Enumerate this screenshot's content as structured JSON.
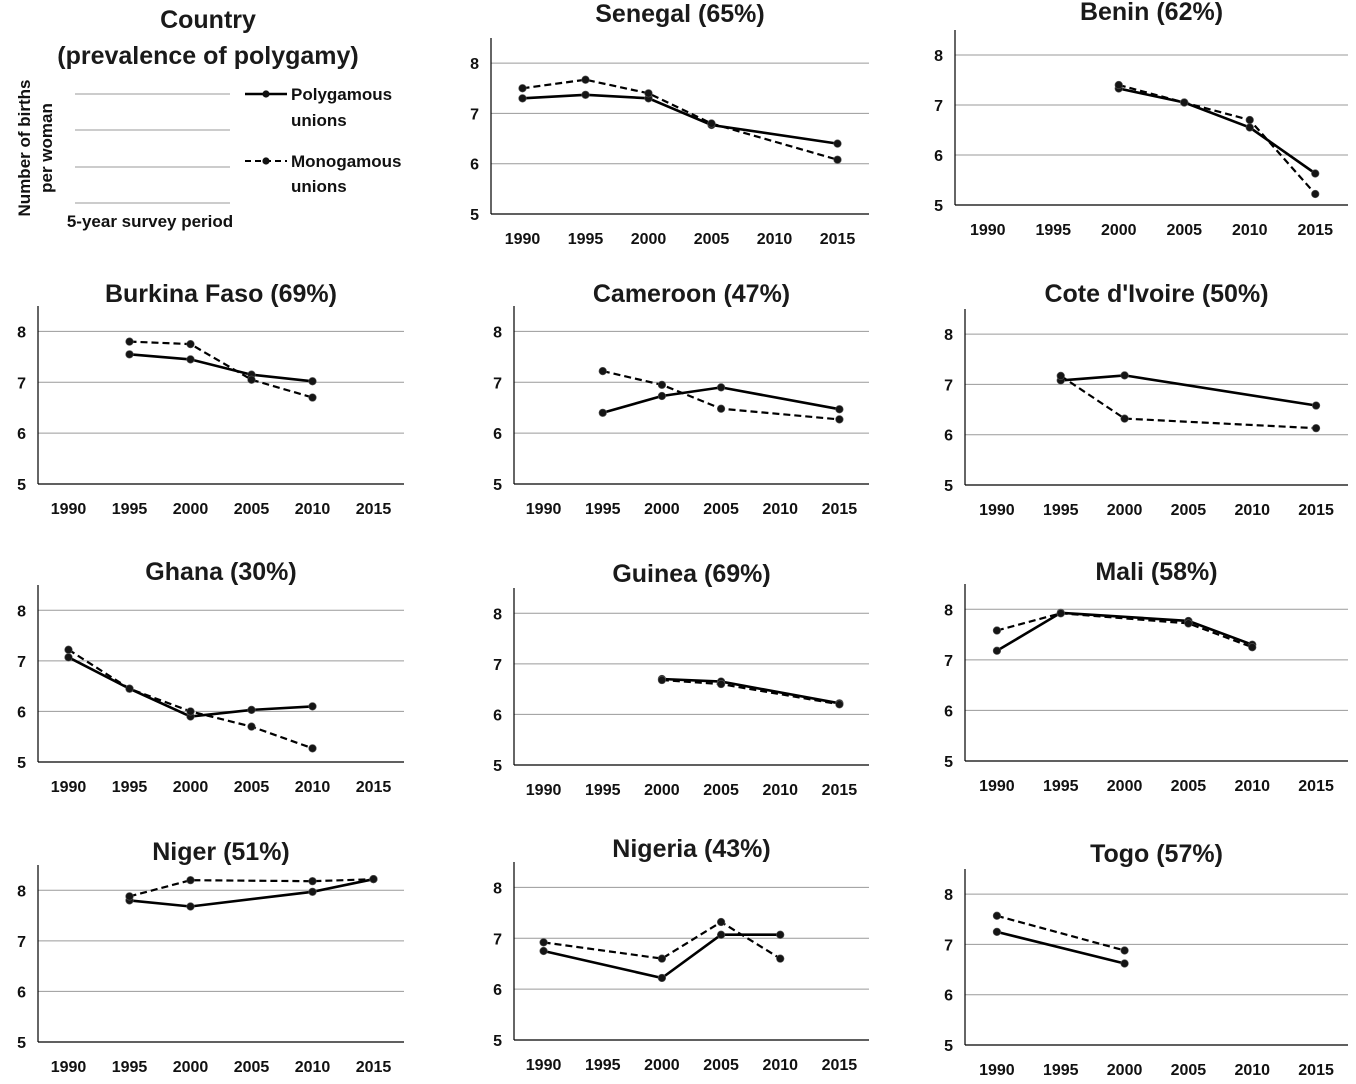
{
  "legend": {
    "title_line1": "Country",
    "title_line2": "(prevalence of polygamy)",
    "ylabel_line1": "Number of births",
    "ylabel_line2": "per woman",
    "xlabel": "5-year survey period",
    "poly_line1": "Polygamous",
    "poly_line2": "unions",
    "mono_line1": "Monogamous",
    "mono_line2": "unions"
  },
  "chart_data": [
    {
      "type": "line",
      "title": "Senegal (65%)",
      "x": [
        1990,
        1995,
        2000,
        2005,
        2010,
        2015
      ],
      "yticks": [
        5,
        6,
        7,
        8
      ],
      "ylim": [
        5,
        8.5
      ],
      "grid": true,
      "series": [
        {
          "name": "Polygamous unions",
          "style": "solid",
          "values": [
            7.3,
            7.37,
            7.3,
            6.77,
            null,
            6.4
          ]
        },
        {
          "name": "Monogamous unions",
          "style": "dashed",
          "values": [
            7.5,
            7.67,
            7.4,
            6.8,
            null,
            6.08
          ]
        }
      ]
    },
    {
      "type": "line",
      "title": "Benin (62%)",
      "x": [
        1990,
        1995,
        2000,
        2005,
        2010,
        2015
      ],
      "yticks": [
        5,
        6,
        7,
        8
      ],
      "ylim": [
        5,
        8.5
      ],
      "grid": true,
      "series": [
        {
          "name": "Polygamous unions",
          "style": "solid",
          "values": [
            null,
            null,
            7.33,
            7.05,
            6.55,
            5.63
          ]
        },
        {
          "name": "Monogamous unions",
          "style": "dashed",
          "values": [
            null,
            null,
            7.4,
            7.05,
            6.7,
            5.22
          ]
        }
      ]
    },
    {
      "type": "line",
      "title": "Burkina Faso (69%)",
      "x": [
        1990,
        1995,
        2000,
        2005,
        2010,
        2015
      ],
      "yticks": [
        5,
        6,
        7,
        8
      ],
      "ylim": [
        5,
        8.5
      ],
      "grid": true,
      "series": [
        {
          "name": "Polygamous unions",
          "style": "solid",
          "values": [
            null,
            7.55,
            7.45,
            7.15,
            7.02,
            null
          ]
        },
        {
          "name": "Monogamous unions",
          "style": "dashed",
          "values": [
            null,
            7.8,
            7.75,
            7.05,
            6.7,
            null
          ]
        }
      ]
    },
    {
      "type": "line",
      "title": "Cameroon (47%)",
      "x": [
        1990,
        1995,
        2000,
        2005,
        2010,
        2015
      ],
      "yticks": [
        5,
        6,
        7,
        8
      ],
      "ylim": [
        5,
        8.5
      ],
      "grid": true,
      "series": [
        {
          "name": "Polygamous unions",
          "style": "solid",
          "values": [
            null,
            6.4,
            6.73,
            6.9,
            null,
            6.47
          ]
        },
        {
          "name": "Monogamous unions",
          "style": "dashed",
          "values": [
            null,
            7.22,
            6.95,
            6.48,
            null,
            6.27
          ]
        }
      ]
    },
    {
      "type": "line",
      "title": "Cote d'Ivoire (50%)",
      "x": [
        1990,
        1995,
        2000,
        2005,
        2010,
        2015
      ],
      "yticks": [
        5,
        6,
        7,
        8
      ],
      "ylim": [
        5,
        8.5
      ],
      "grid": true,
      "series": [
        {
          "name": "Polygamous unions",
          "style": "solid",
          "values": [
            null,
            7.08,
            7.18,
            null,
            null,
            6.58
          ]
        },
        {
          "name": "Monogamous unions",
          "style": "dashed",
          "values": [
            null,
            7.17,
            6.32,
            null,
            null,
            6.13
          ]
        }
      ]
    },
    {
      "type": "line",
      "title": "Ghana (30%)",
      "x": [
        1990,
        1995,
        2000,
        2005,
        2010,
        2015
      ],
      "yticks": [
        5,
        6,
        7,
        8
      ],
      "ylim": [
        5,
        8.5
      ],
      "grid": true,
      "series": [
        {
          "name": "Polygamous unions",
          "style": "solid",
          "values": [
            7.07,
            6.45,
            5.9,
            6.03,
            6.1,
            null
          ]
        },
        {
          "name": "Monogamous unions",
          "style": "dashed",
          "values": [
            7.22,
            6.45,
            6.0,
            5.7,
            5.27,
            null
          ]
        }
      ]
    },
    {
      "type": "line",
      "title": "Guinea (69%)",
      "x": [
        1990,
        1995,
        2000,
        2005,
        2010,
        2015
      ],
      "yticks": [
        5,
        6,
        7,
        8
      ],
      "ylim": [
        5,
        8.5
      ],
      "grid": true,
      "series": [
        {
          "name": "Polygamous unions",
          "style": "solid",
          "values": [
            null,
            null,
            6.7,
            6.65,
            null,
            6.22
          ]
        },
        {
          "name": "Monogamous unions",
          "style": "dashed",
          "values": [
            null,
            null,
            6.68,
            6.6,
            null,
            6.2
          ]
        }
      ]
    },
    {
      "type": "line",
      "title": "Mali (58%)",
      "x": [
        1990,
        1995,
        2000,
        2005,
        2010,
        2015
      ],
      "yticks": [
        5,
        6,
        7,
        8
      ],
      "ylim": [
        5,
        8.5
      ],
      "grid": true,
      "series": [
        {
          "name": "Polygamous unions",
          "style": "solid",
          "values": [
            7.18,
            7.93,
            null,
            7.77,
            7.3,
            null
          ]
        },
        {
          "name": "Monogamous unions",
          "style": "dashed",
          "values": [
            7.58,
            7.92,
            null,
            7.72,
            7.25,
            null
          ]
        }
      ]
    },
    {
      "type": "line",
      "title": "Niger (51%)",
      "x": [
        1990,
        1995,
        2000,
        2005,
        2010,
        2015
      ],
      "yticks": [
        5,
        6,
        7,
        8
      ],
      "ylim": [
        5,
        8.5
      ],
      "grid": true,
      "series": [
        {
          "name": "Polygamous unions",
          "style": "solid",
          "values": [
            null,
            7.8,
            7.68,
            null,
            7.97,
            8.22
          ]
        },
        {
          "name": "Monogamous unions",
          "style": "dashed",
          "values": [
            null,
            7.88,
            8.2,
            null,
            8.18,
            8.22
          ]
        }
      ]
    },
    {
      "type": "line",
      "title": "Nigeria (43%)",
      "x": [
        1990,
        1995,
        2000,
        2005,
        2010,
        2015
      ],
      "yticks": [
        5,
        6,
        7,
        8
      ],
      "ylim": [
        5,
        8.5
      ],
      "grid": true,
      "series": [
        {
          "name": "Polygamous unions",
          "style": "solid",
          "values": [
            6.75,
            null,
            6.22,
            7.07,
            7.07,
            null
          ]
        },
        {
          "name": "Monogamous unions",
          "style": "dashed",
          "values": [
            6.92,
            null,
            6.6,
            7.32,
            6.6,
            null
          ]
        }
      ]
    },
    {
      "type": "line",
      "title": "Togo (57%)",
      "x": [
        1990,
        1995,
        2000,
        2005,
        2010,
        2015
      ],
      "yticks": [
        5,
        6,
        7,
        8
      ],
      "ylim": [
        5,
        8.5
      ],
      "grid": true,
      "series": [
        {
          "name": "Polygamous unions",
          "style": "solid",
          "values": [
            7.25,
            null,
            6.62,
            null,
            null,
            null
          ]
        },
        {
          "name": "Monogamous unions",
          "style": "dashed",
          "values": [
            7.57,
            null,
            6.88,
            null,
            null,
            null
          ]
        }
      ]
    }
  ]
}
